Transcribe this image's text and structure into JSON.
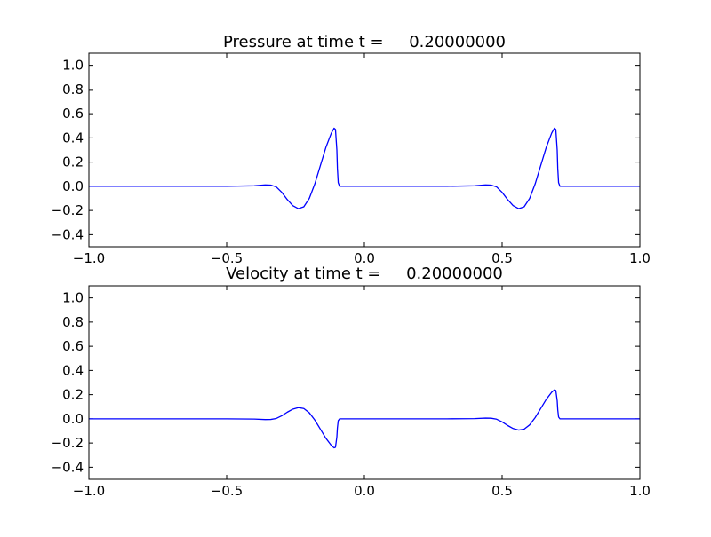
{
  "chart_data": [
    {
      "type": "line",
      "title": "Pressure at time t =     0.20000000",
      "xlabel": "",
      "ylabel": "",
      "xlim": [
        -1.0,
        1.0
      ],
      "ylim": [
        -0.5,
        1.1
      ],
      "xticks": [
        -1.0,
        -0.5,
        0.0,
        0.5,
        1.0
      ],
      "xtick_labels": [
        "−1.0",
        "−0.5",
        "0.0",
        "0.5",
        "1.0"
      ],
      "yticks": [
        -0.4,
        -0.2,
        0.0,
        0.2,
        0.4,
        0.6,
        0.8,
        1.0
      ],
      "ytick_labels": [
        "−0.4",
        "−0.2",
        "0.0",
        "0.2",
        "0.4",
        "0.6",
        "0.8",
        "1.0"
      ],
      "grid": false,
      "line_color": "#0000ff",
      "series": [
        {
          "x": [
            -1.0,
            -0.5,
            -0.4,
            -0.36,
            -0.34,
            -0.32,
            -0.3,
            -0.28,
            -0.26,
            -0.24,
            -0.22,
            -0.2,
            -0.18,
            -0.16,
            -0.14,
            -0.12,
            -0.11,
            -0.105,
            -0.1,
            -0.098,
            -0.095,
            -0.09,
            0.0,
            0.3,
            0.4,
            0.44,
            0.46,
            0.48,
            0.5,
            0.52,
            0.54,
            0.56,
            0.58,
            0.6,
            0.62,
            0.64,
            0.66,
            0.68,
            0.69,
            0.695,
            0.7,
            0.702,
            0.705,
            0.71,
            0.8,
            1.0
          ],
          "y": [
            0.0,
            0.0,
            0.004,
            0.012,
            0.01,
            -0.005,
            -0.05,
            -0.11,
            -0.16,
            -0.185,
            -0.17,
            -0.1,
            0.02,
            0.17,
            0.32,
            0.44,
            0.48,
            0.47,
            0.3,
            0.15,
            0.03,
            0.0,
            0.0,
            0.0,
            0.004,
            0.012,
            0.01,
            -0.005,
            -0.05,
            -0.11,
            -0.16,
            -0.185,
            -0.17,
            -0.1,
            0.02,
            0.17,
            0.32,
            0.44,
            0.48,
            0.47,
            0.3,
            0.15,
            0.03,
            0.0,
            0.0,
            0.0
          ]
        }
      ]
    },
    {
      "type": "line",
      "title": "Velocity at time t =     0.20000000",
      "xlabel": "",
      "ylabel": "",
      "xlim": [
        -1.0,
        1.0
      ],
      "ylim": [
        -0.5,
        1.1
      ],
      "xticks": [
        -1.0,
        -0.5,
        0.0,
        0.5,
        1.0
      ],
      "xtick_labels": [
        "−1.0",
        "−0.5",
        "0.0",
        "0.5",
        "1.0"
      ],
      "yticks": [
        -0.4,
        -0.2,
        0.0,
        0.2,
        0.4,
        0.6,
        0.8,
        1.0
      ],
      "ytick_labels": [
        "−0.4",
        "−0.2",
        "0.0",
        "0.2",
        "0.4",
        "0.6",
        "0.8",
        "1.0"
      ],
      "grid": false,
      "line_color": "#0000ff",
      "series": [
        {
          "x": [
            -1.0,
            -0.5,
            -0.4,
            -0.36,
            -0.34,
            -0.32,
            -0.3,
            -0.28,
            -0.26,
            -0.24,
            -0.22,
            -0.2,
            -0.18,
            -0.16,
            -0.14,
            -0.12,
            -0.11,
            -0.105,
            -0.1,
            -0.098,
            -0.095,
            -0.09,
            0.0,
            0.3,
            0.4,
            0.44,
            0.46,
            0.48,
            0.5,
            0.52,
            0.54,
            0.56,
            0.58,
            0.6,
            0.62,
            0.64,
            0.66,
            0.68,
            0.69,
            0.695,
            0.7,
            0.702,
            0.705,
            0.71,
            0.8,
            1.0
          ],
          "y": [
            0.0,
            0.0,
            -0.002,
            -0.006,
            -0.005,
            0.003,
            0.025,
            0.055,
            0.08,
            0.093,
            0.085,
            0.05,
            -0.01,
            -0.085,
            -0.16,
            -0.22,
            -0.24,
            -0.235,
            -0.15,
            -0.075,
            -0.015,
            0.0,
            0.0,
            0.0,
            0.002,
            0.006,
            0.005,
            -0.003,
            -0.025,
            -0.055,
            -0.08,
            -0.093,
            -0.085,
            -0.05,
            0.01,
            0.085,
            0.16,
            0.22,
            0.24,
            0.235,
            0.15,
            0.075,
            0.015,
            0.0,
            0.0,
            0.0
          ]
        }
      ]
    }
  ]
}
